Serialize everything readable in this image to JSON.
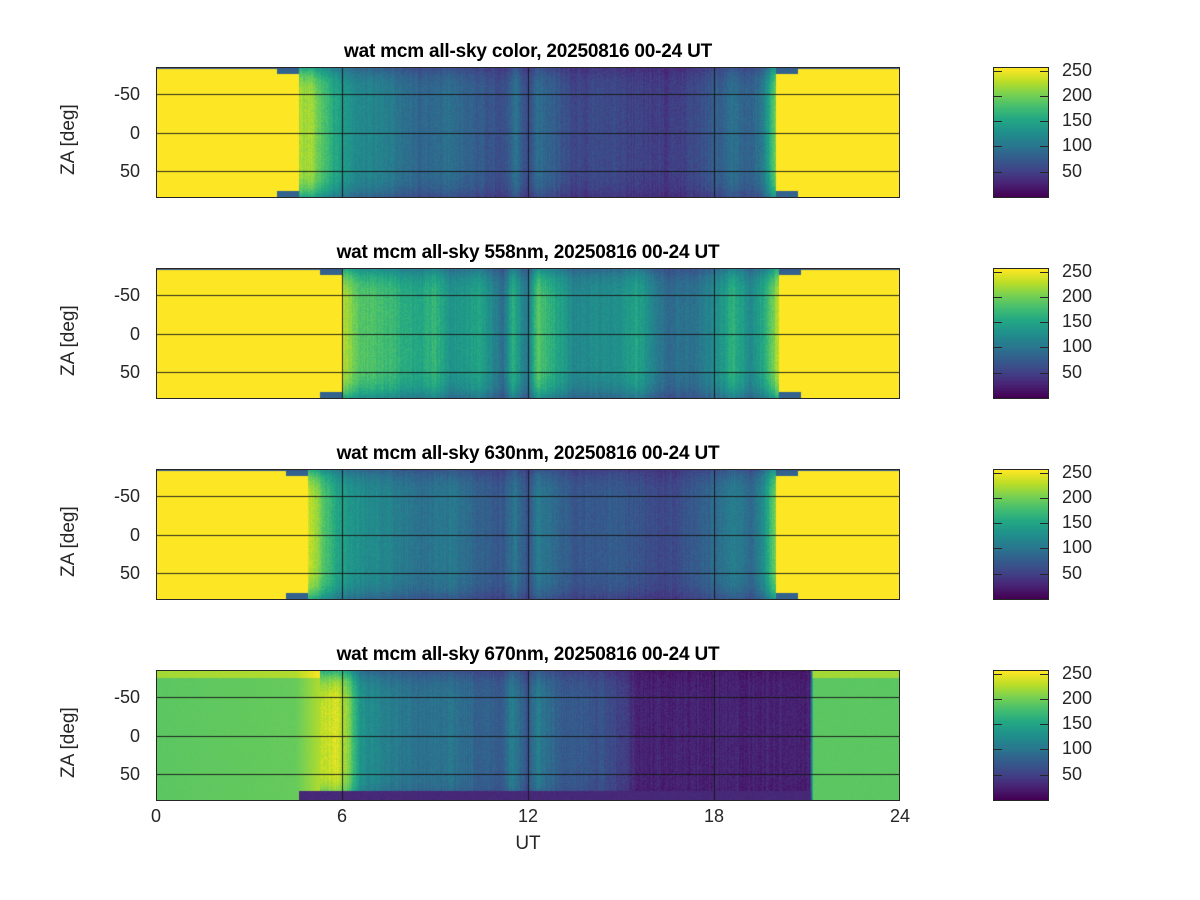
{
  "chart_data": {
    "type": "heatmap",
    "figure": "keogram",
    "xlabel": "UT",
    "xlim": [
      0,
      24
    ],
    "xticks": [
      "0",
      "6",
      "12",
      "18",
      "24"
    ],
    "xtick_values": [
      0,
      6,
      12,
      18,
      24
    ],
    "ylabel": "ZA [deg]",
    "ylim": [
      -85,
      85
    ],
    "y_reversed": true,
    "yticks": [
      "-50",
      "0",
      "50"
    ],
    "ytick_values": [
      -50,
      0,
      50
    ],
    "grid": true,
    "colormap": "viridis",
    "clim": [
      0,
      255
    ],
    "colorbar_ticks": [
      "250",
      "200",
      "150",
      "100",
      "50"
    ],
    "colorbar_tick_values": [
      250,
      200,
      150,
      100,
      50
    ],
    "colorbar_placement": "right",
    "panels": [
      {
        "title": "wat mcm all-sky color, 20250816 00-24 UT",
        "saturated_until_ut": 4.6,
        "saturated_from_ut": 20.0,
        "saturated_value": 255,
        "profile_ut": [
          5.0,
          5.8,
          6.5,
          7.5,
          8.5,
          9.5,
          10.5,
          11.2,
          11.6,
          12.0,
          12.3,
          13.5,
          15.0,
          16.5,
          17.5,
          18.2,
          18.6,
          19.2,
          19.6,
          20.0
        ],
        "profile_value": [
          220,
          150,
          120,
          110,
          85,
          95,
          75,
          60,
          95,
          55,
          95,
          55,
          55,
          45,
          60,
          80,
          95,
          80,
          110,
          200
        ]
      },
      {
        "title": "wat mcm all-sky 558nm, 20250816 00-24 UT",
        "saturated_until_ut": 6.0,
        "saturated_from_ut": 20.1,
        "saturated_value": 255,
        "profile_ut": [
          6.0,
          6.5,
          7.5,
          8.5,
          9.0,
          9.5,
          10.5,
          11.2,
          11.5,
          12.0,
          12.3,
          13.5,
          15.0,
          15.5,
          16.5,
          17.5,
          18.2,
          18.6,
          19.2,
          19.6,
          20.1
        ],
        "profile_value": [
          235,
          190,
          175,
          150,
          170,
          130,
          150,
          90,
          160,
          100,
          190,
          120,
          130,
          150,
          90,
          100,
          130,
          165,
          120,
          160,
          230
        ]
      },
      {
        "title": "wat mcm all-sky 630nm, 20250816 00-24 UT",
        "saturated_until_ut": 4.9,
        "saturated_from_ut": 20.0,
        "saturated_value": 255,
        "profile_ut": [
          5.0,
          5.8,
          6.5,
          7.5,
          8.5,
          9.5,
          10.5,
          11.2,
          11.6,
          12.0,
          12.3,
          13.5,
          15.0,
          16.5,
          17.5,
          18.2,
          18.6,
          19.2,
          19.6,
          20.0
        ],
        "profile_value": [
          230,
          150,
          130,
          115,
          95,
          105,
          80,
          70,
          100,
          65,
          105,
          70,
          75,
          55,
          75,
          95,
          110,
          90,
          125,
          210
        ]
      },
      {
        "title": "wat mcm all-sky 670nm, 20250816 00-24 UT",
        "saturated_until_ut": 0,
        "saturated_from_ut": 24,
        "saturated_value": 255,
        "day_value_left": 190,
        "day_value_right": 190,
        "profile_ut": [
          0,
          4.5,
          5.3,
          5.8,
          6.2,
          6.6,
          7.5,
          8.5,
          9.5,
          10.5,
          11.2,
          11.5,
          12.0,
          12.3,
          13.0,
          14.5,
          15.3,
          15.5,
          21.1,
          21.2,
          24
        ],
        "profile_value": [
          190,
          195,
          225,
          245,
          210,
          130,
          110,
          95,
          100,
          80,
          75,
          110,
          65,
          110,
          75,
          65,
          40,
          25,
          25,
          190,
          190
        ]
      }
    ]
  }
}
